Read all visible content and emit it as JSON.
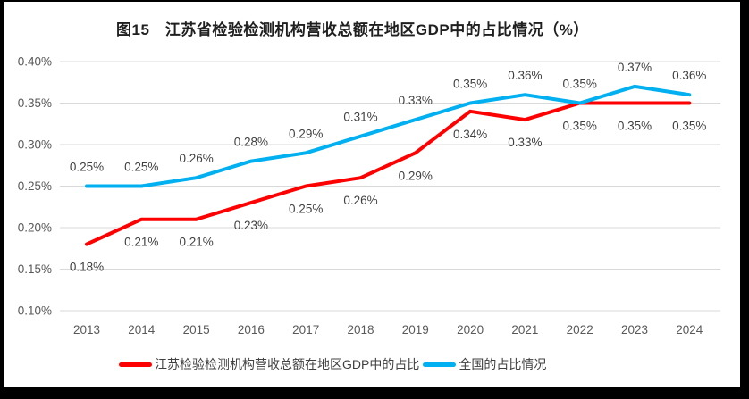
{
  "chart_data": {
    "type": "line",
    "title": "图15　江苏省检验检测机构营收总额在地区GDP中的占比情况（%）",
    "categories": [
      "2013",
      "2014",
      "2015",
      "2016",
      "2017",
      "2018",
      "2019",
      "2020",
      "2021",
      "2022",
      "2023",
      "2024"
    ],
    "series": [
      {
        "name": "江苏检验检测机构营收总额在地区GDP中的占比",
        "color": "#FF0000",
        "values": [
          0.18,
          0.21,
          0.21,
          0.23,
          0.25,
          0.26,
          0.29,
          0.34,
          0.33,
          0.35,
          0.35,
          0.35
        ],
        "data_labels": [
          "0.18%",
          "0.21%",
          "0.21%",
          "0.23%",
          "0.25%",
          "0.26%",
          "0.29%",
          "0.34%",
          "0.33%",
          "0.35%",
          "0.35%",
          "0.35%"
        ]
      },
      {
        "name": "全国的占比情况",
        "color": "#00B0F0",
        "values": [
          0.25,
          0.25,
          0.26,
          0.28,
          0.29,
          0.31,
          0.33,
          0.35,
          0.36,
          0.35,
          0.37,
          0.36
        ],
        "data_labels": [
          "0.25%",
          "0.25%",
          "0.26%",
          "0.28%",
          "0.29%",
          "0.31%",
          "0.33%",
          "0.35%",
          "0.36%",
          "0.35%",
          "0.37%",
          "0.36%"
        ]
      }
    ],
    "ylim": [
      0.1,
      0.4
    ],
    "yticks": [
      "0.40%",
      "0.35%",
      "0.30%",
      "0.25%",
      "0.20%",
      "0.15%",
      "0.10%"
    ],
    "xlabel": "",
    "ylabel": "",
    "grid": true,
    "legend_position": "bottom",
    "colors": {
      "gridline": "#D9D9D9",
      "axis_text": "#595959",
      "data_label_text": "#3f3f3f"
    }
  }
}
